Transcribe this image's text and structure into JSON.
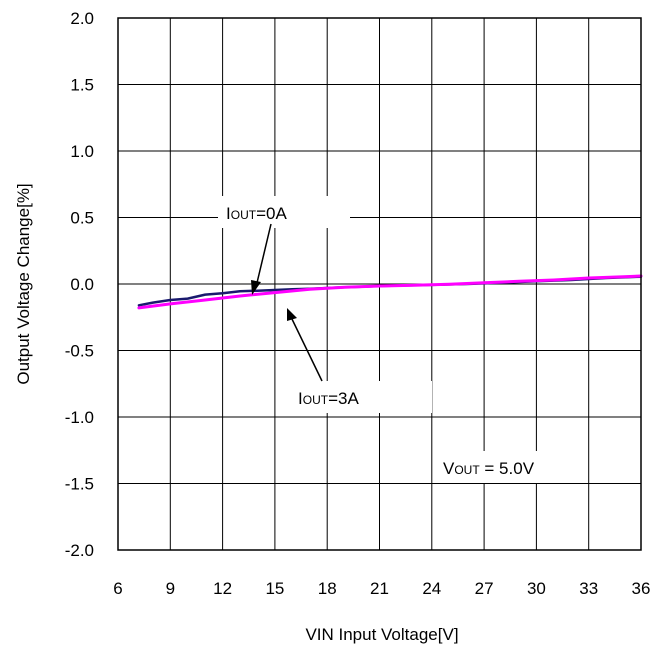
{
  "chart_data": {
    "type": "line",
    "title": "",
    "xlabel": "VIN Input Voltage[V]",
    "ylabel": "Output Voltage Change[%]",
    "xlim": [
      6,
      36
    ],
    "ylim": [
      -2.0,
      2.0
    ],
    "xticks": [
      "6",
      "9",
      "12",
      "15",
      "18",
      "21",
      "24",
      "27",
      "30",
      "33",
      "36"
    ],
    "yticks": [
      "2.0",
      "1.5",
      "1.0",
      "0.5",
      "0.0",
      "-0.5",
      "-1.0",
      "-1.5",
      "-2.0"
    ],
    "grid": true,
    "series": [
      {
        "name": "IOUT=0A",
        "color": "#1a1a6e",
        "x": [
          7.2,
          8,
          9,
          10,
          11,
          12,
          13,
          14,
          15,
          16,
          17,
          18,
          19,
          20,
          21,
          22,
          24,
          26,
          28,
          30,
          32,
          34,
          36
        ],
        "y": [
          -0.16,
          -0.14,
          -0.12,
          -0.11,
          -0.08,
          -0.07,
          -0.055,
          -0.05,
          -0.045,
          -0.04,
          -0.035,
          -0.03,
          -0.025,
          -0.02,
          -0.015,
          -0.012,
          -0.007,
          0.0,
          0.01,
          0.02,
          0.03,
          0.045,
          0.055
        ]
      },
      {
        "name": "IOUT=3A",
        "color": "#ff00ff",
        "x": [
          7.2,
          9,
          11,
          13,
          15,
          17,
          19,
          21,
          23,
          25,
          27,
          29,
          31,
          33,
          35,
          36
        ],
        "y": [
          -0.18,
          -0.15,
          -0.12,
          -0.09,
          -0.065,
          -0.04,
          -0.025,
          -0.015,
          -0.01,
          -0.002,
          0.01,
          0.02,
          0.03,
          0.045,
          0.055,
          0.06
        ]
      }
    ],
    "annotations": [
      {
        "main": "I",
        "sub": "OUT",
        "rest": "=0A"
      },
      {
        "main": "I",
        "sub": "OUT",
        "rest": "=3A"
      },
      {
        "main": "V",
        "sub": "OUT",
        "rest": " = 5.0V"
      }
    ]
  }
}
